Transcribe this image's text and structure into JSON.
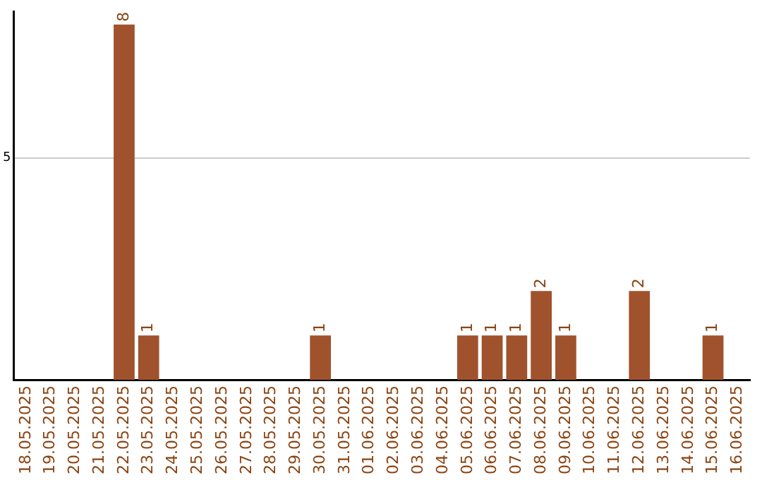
{
  "chart_data": {
    "type": "bar",
    "categories": [
      "18.05.2025",
      "19.05.2025",
      "20.05.2025",
      "21.05.2025",
      "22.05.2025",
      "23.05.2025",
      "24.05.2025",
      "25.05.2025",
      "26.05.2025",
      "27.05.2025",
      "28.05.2025",
      "29.05.2025",
      "30.05.2025",
      "31.05.2025",
      "01.06.2025",
      "02.06.2025",
      "03.06.2025",
      "04.06.2025",
      "05.06.2025",
      "06.06.2025",
      "07.06.2025",
      "08.06.2025",
      "09.06.2025",
      "10.06.2025",
      "11.06.2025",
      "12.06.2025",
      "13.06.2025",
      "14.06.2025",
      "15.06.2025",
      "16.06.2025"
    ],
    "values": [
      0,
      0,
      0,
      0,
      8,
      1,
      0,
      0,
      0,
      0,
      0,
      0,
      1,
      0,
      0,
      0,
      0,
      0,
      1,
      1,
      1,
      2,
      1,
      0,
      0,
      2,
      0,
      0,
      1,
      0
    ],
    "value_labels": [
      null,
      null,
      null,
      null,
      "8",
      "1",
      null,
      null,
      null,
      null,
      null,
      null,
      "1",
      null,
      null,
      null,
      null,
      null,
      "1",
      "1",
      "1",
      "2",
      "1",
      null,
      null,
      "2",
      null,
      null,
      "1",
      null
    ],
    "color": "#a0522d",
    "ylim": [
      0,
      8.3
    ],
    "yticks": [
      5
    ],
    "grid": "y",
    "legend": false
  }
}
